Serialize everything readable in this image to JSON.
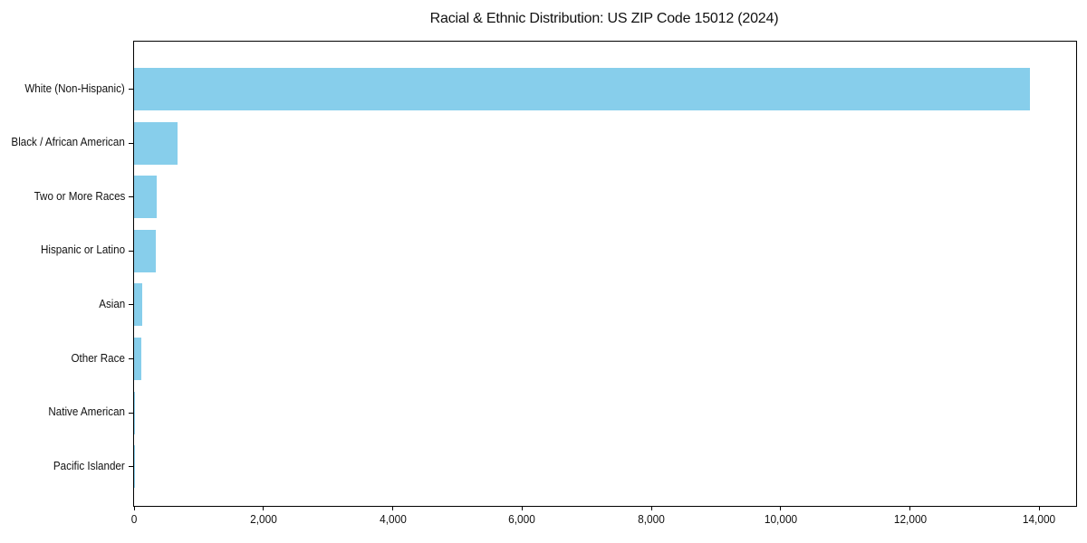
{
  "chart_data": {
    "type": "bar",
    "orientation": "horizontal",
    "title": "Racial & Ethnic Distribution: US ZIP Code 15012 (2024)",
    "categories": [
      "White (Non-Hispanic)",
      "Black / African American",
      "Two or More Races",
      "Hispanic or Latino",
      "Asian",
      "Other Race",
      "Native American",
      "Pacific Islander"
    ],
    "values": [
      13850,
      670,
      350,
      335,
      130,
      115,
      8,
      2
    ],
    "xlabel": "",
    "ylabel": "",
    "xlim": [
      0,
      14570
    ],
    "x_ticks": {
      "values": [
        0,
        2000,
        4000,
        6000,
        8000,
        10000,
        12000,
        14000
      ],
      "labels": [
        "0",
        "2,000",
        "4,000",
        "6,000",
        "8,000",
        "10,000",
        "12,000",
        "14,000"
      ]
    },
    "bar_color": "#87CEEB",
    "axis_color": "#000000",
    "background_color": "#ffffff",
    "grid": false,
    "legend": "none",
    "first_category_position": "top"
  }
}
